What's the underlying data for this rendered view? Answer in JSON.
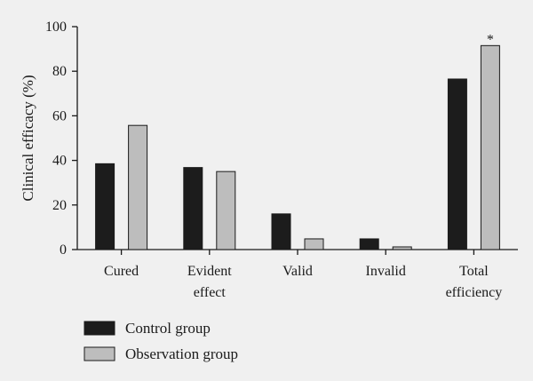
{
  "chart_data": {
    "type": "bar",
    "ylabel": "Clinical efficacy (%)",
    "ylim": [
      0,
      100
    ],
    "yticks": [
      0,
      20,
      40,
      60,
      80,
      100
    ],
    "grid": false,
    "legend_position": "bottom-left",
    "categories": [
      [
        "Cured"
      ],
      [
        "Evident",
        "effect"
      ],
      [
        "Valid"
      ],
      [
        "Invalid"
      ],
      [
        "Total",
        "efficiency"
      ]
    ],
    "series": [
      {
        "name": "Control group",
        "color": "#1c1c1c",
        "values": [
          38.5,
          36.8,
          16.0,
          4.8,
          76.5
        ]
      },
      {
        "name": "Observation group",
        "color": "#bdbdbd",
        "values": [
          55.7,
          35.0,
          4.8,
          1.2,
          91.5
        ]
      }
    ],
    "annotations": [
      {
        "text": "*",
        "category_index": 4,
        "series_index": 1
      }
    ]
  }
}
